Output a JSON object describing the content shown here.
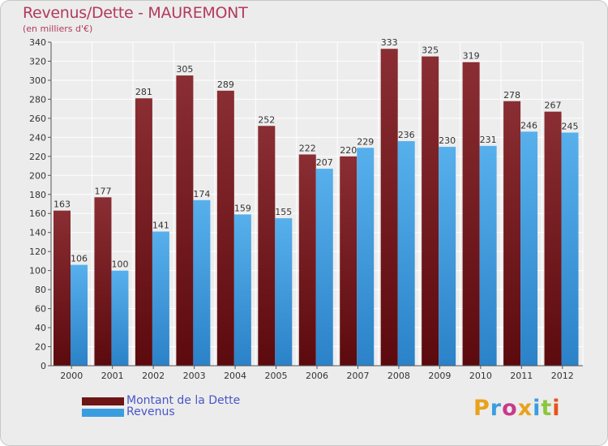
{
  "chart_data": {
    "type": "bar",
    "title": "Revenus/Dette - MAUREMONT",
    "subtitle": "(en milliers d'€)",
    "categories": [
      "2000",
      "2001",
      "2002",
      "2003",
      "2004",
      "2005",
      "2006",
      "2007",
      "2008",
      "2009",
      "2010",
      "2011",
      "2012"
    ],
    "series": [
      {
        "name": "Montant de la Dette",
        "color": "#6e1515",
        "values": [
          163,
          177,
          281,
          305,
          289,
          252,
          222,
          220,
          333,
          325,
          319,
          278,
          267
        ]
      },
      {
        "name": "Revenus",
        "color": "#3a9de0",
        "values": [
          106,
          100,
          141,
          174,
          159,
          155,
          207,
          229,
          236,
          230,
          231,
          246,
          245
        ]
      }
    ],
    "ylim": [
      0,
      340
    ],
    "yticks": [
      0,
      20,
      40,
      60,
      80,
      100,
      120,
      140,
      160,
      180,
      200,
      220,
      240,
      260,
      280,
      300,
      320,
      340
    ],
    "grid": true,
    "legend": "bottom-left",
    "xlabel": "",
    "ylabel": ""
  },
  "logo_text": "Proxiti"
}
